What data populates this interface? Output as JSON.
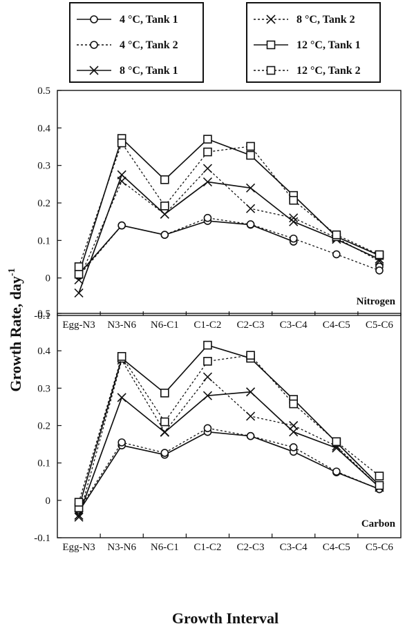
{
  "chart_data": [
    {
      "type": "line",
      "panel_label": "Nitrogen",
      "categories": [
        "Egg-N3",
        "N3-N6",
        "N6-C1",
        "C1-C2",
        "C2-C3",
        "C3-C4",
        "C4-C5",
        "C5-C6"
      ],
      "ylim": [
        -0.1,
        0.5
      ],
      "yticks": [
        "-0.1",
        "0",
        "0.1",
        "0.2",
        "0.3",
        "0.4",
        "0.5"
      ],
      "series": [
        {
          "name": "4 °C, Tank 1",
          "marker": "circle",
          "dash": "solid",
          "values": [
            0.01,
            0.14,
            0.115,
            0.152,
            0.142,
            0.097,
            null,
            0.03
          ]
        },
        {
          "name": "4 °C, Tank 2",
          "marker": "circle",
          "dash": "dotted",
          "values": [
            0.005,
            0.14,
            0.115,
            0.16,
            0.143,
            0.105,
            0.063,
            0.02
          ]
        },
        {
          "name": "8 °C, Tank 1",
          "marker": "x",
          "dash": "solid",
          "values": [
            -0.04,
            0.275,
            0.17,
            0.256,
            0.24,
            0.15,
            0.103,
            0.05
          ]
        },
        {
          "name": "8 °C, Tank 2",
          "marker": "x",
          "dash": "dotted",
          "values": [
            -0.005,
            0.258,
            0.17,
            0.292,
            0.185,
            0.16,
            0.107,
            0.045
          ]
        },
        {
          "name": "12 °C, Tank 1",
          "marker": "square",
          "dash": "solid",
          "values": [
            0.01,
            0.372,
            0.262,
            0.37,
            0.327,
            0.22,
            0.11,
            0.06
          ]
        },
        {
          "name": "12 °C, Tank 2",
          "marker": "square",
          "dash": "dotted",
          "values": [
            0.03,
            0.36,
            0.192,
            0.336,
            0.351,
            0.207,
            0.115,
            0.062
          ]
        }
      ]
    },
    {
      "type": "line",
      "panel_label": "Carbon",
      "categories": [
        "Egg-N3",
        "N3-N6",
        "N6-C1",
        "C1-C2",
        "C2-C3",
        "C3-C4",
        "C4-C5",
        "C5-C6"
      ],
      "ylim": [
        -0.1,
        0.5
      ],
      "yticks": [
        "-0.1",
        "0",
        "0.1",
        "0.2",
        "0.3",
        "0.4",
        "0.5"
      ],
      "series": [
        {
          "name": "4 °C, Tank 1",
          "marker": "circle",
          "dash": "solid",
          "values": [
            -0.03,
            0.147,
            0.122,
            0.183,
            0.172,
            0.13,
            0.075,
            0.03
          ]
        },
        {
          "name": "4 °C, Tank 2",
          "marker": "circle",
          "dash": "dotted",
          "values": [
            -0.025,
            0.155,
            0.127,
            0.193,
            0.172,
            0.142,
            0.077,
            0.03
          ]
        },
        {
          "name": "8 °C, Tank 1",
          "marker": "x",
          "dash": "solid",
          "values": [
            -0.04,
            0.275,
            0.182,
            0.28,
            0.29,
            0.183,
            0.14,
            0.035
          ]
        },
        {
          "name": "8 °C, Tank 2",
          "marker": "x",
          "dash": "dotted",
          "values": [
            -0.045,
            0.375,
            0.183,
            0.33,
            0.225,
            0.2,
            0.145,
            0.035
          ]
        },
        {
          "name": "12 °C, Tank 1",
          "marker": "square",
          "dash": "solid",
          "values": [
            -0.02,
            0.38,
            0.287,
            0.415,
            0.38,
            0.27,
            0.155,
            0.04
          ]
        },
        {
          "name": "12 °C, Tank 2",
          "marker": "square",
          "dash": "dotted",
          "values": [
            -0.005,
            0.385,
            0.21,
            0.372,
            0.388,
            0.258,
            0.157,
            0.065
          ]
        }
      ]
    }
  ],
  "ylabel_main": "Growth Rate, day",
  "ylabel_sup": "-1",
  "xlabel": "Growth Interval",
  "legend": {
    "left": [
      "4 °C, Tank 1",
      "4 °C, Tank 2",
      "8 °C, Tank 1"
    ],
    "right": [
      "8 °C, Tank 2",
      "12 °C, Tank 1",
      "12 °C, Tank 2"
    ]
  }
}
